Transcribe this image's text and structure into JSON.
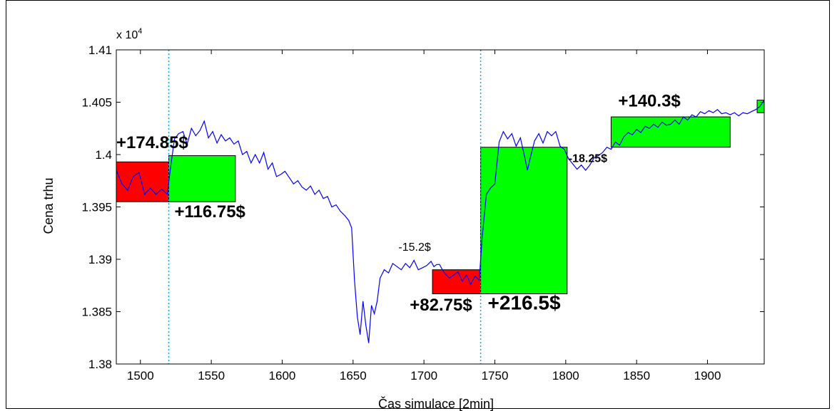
{
  "chart_data": {
    "type": "line",
    "xlabel": "Čas simulace [2min]",
    "ylabel": "Cena trhu",
    "exponent_label": "x 10",
    "exponent_power": "4",
    "xlim": [
      1483,
      1940
    ],
    "ylim": [
      1.38,
      1.41
    ],
    "x_ticks": [
      1500,
      1550,
      1600,
      1650,
      1700,
      1750,
      1800,
      1850,
      1900
    ],
    "x_tick_labels": [
      "1500",
      "1550",
      "1600",
      "1650",
      "1700",
      "1750",
      "1800",
      "1850",
      "1900"
    ],
    "y_ticks": [
      1.38,
      1.385,
      1.39,
      1.395,
      1.4,
      1.405,
      1.41
    ],
    "y_tick_labels": [
      "1.38",
      "1.385",
      "1.39",
      "1.395",
      "1.4",
      "1.405",
      "1.41"
    ],
    "grid": false,
    "line_color": "#0000ff",
    "vlines": [
      1520,
      1740
    ],
    "vline_color": "#00aaee",
    "series": [
      {
        "x": [
          1483,
          1487,
          1491,
          1495,
          1499,
          1503,
          1507,
          1511,
          1515,
          1519,
          1521,
          1524,
          1527,
          1530,
          1533,
          1536,
          1539,
          1542,
          1545,
          1548,
          1551,
          1554,
          1557,
          1560,
          1563,
          1566,
          1569,
          1572,
          1575,
          1578,
          1581,
          1584,
          1587,
          1590,
          1593,
          1596,
          1599,
          1602,
          1605,
          1608,
          1611,
          1614,
          1617,
          1620,
          1623,
          1626,
          1629,
          1632,
          1635,
          1638,
          1641,
          1644,
          1647,
          1649,
          1651,
          1653,
          1655,
          1657,
          1659,
          1661,
          1663,
          1665,
          1667,
          1669,
          1672,
          1675,
          1678,
          1681,
          1684,
          1687,
          1690,
          1693,
          1696,
          1699,
          1702,
          1705,
          1707,
          1709,
          1711,
          1713,
          1715,
          1718,
          1721,
          1724,
          1727,
          1730,
          1733,
          1736,
          1739,
          1741,
          1744,
          1747,
          1750,
          1753,
          1756,
          1759,
          1762,
          1765,
          1768,
          1771,
          1773,
          1775,
          1778,
          1781,
          1784,
          1787,
          1790,
          1793,
          1796,
          1799,
          1802,
          1805,
          1808,
          1811,
          1814,
          1817,
          1820,
          1823,
          1826,
          1829,
          1832,
          1835,
          1838,
          1841,
          1844,
          1847,
          1850,
          1853,
          1856,
          1859,
          1862,
          1865,
          1868,
          1871,
          1874,
          1877,
          1880,
          1883,
          1886,
          1889,
          1892,
          1895,
          1898,
          1901,
          1904,
          1907,
          1910,
          1913,
          1916,
          1919,
          1922,
          1925,
          1928,
          1931,
          1934,
          1937,
          1940
        ],
        "y": [
          1.3985,
          1.3972,
          1.3966,
          1.3979,
          1.3983,
          1.3962,
          1.3968,
          1.3962,
          1.3967,
          1.3962,
          1.3985,
          1.4015,
          1.402,
          1.4022,
          1.401,
          1.4025,
          1.4018,
          1.4023,
          1.4032,
          1.4016,
          1.4022,
          1.4011,
          1.4019,
          1.4013,
          1.4016,
          1.401,
          1.4013,
          1.4,
          1.4003,
          1.3992,
          1.4,
          1.3992,
          1.4002,
          1.3986,
          1.3992,
          1.3979,
          1.3981,
          1.3984,
          1.3978,
          1.3972,
          1.3975,
          1.3969,
          1.3966,
          1.397,
          1.3962,
          1.3966,
          1.3958,
          1.396,
          1.395,
          1.3952,
          1.3946,
          1.3942,
          1.3937,
          1.393,
          1.388,
          1.3845,
          1.3828,
          1.386,
          1.3837,
          1.382,
          1.3856,
          1.3848,
          1.386,
          1.3882,
          1.389,
          1.3887,
          1.3896,
          1.3893,
          1.389,
          1.3896,
          1.3892,
          1.3899,
          1.389,
          1.3892,
          1.3894,
          1.3898,
          1.3893,
          1.3895,
          1.3895,
          1.389,
          1.3886,
          1.3882,
          1.3885,
          1.3888,
          1.3879,
          1.3885,
          1.3876,
          1.3884,
          1.388,
          1.392,
          1.3962,
          1.3968,
          1.3972,
          1.4012,
          1.4022,
          1.4015,
          1.402,
          1.4008,
          1.4016,
          1.3998,
          1.3985,
          1.3997,
          1.4013,
          1.402,
          1.4011,
          1.4022,
          1.4018,
          1.4022,
          1.4008,
          1.4005,
          1.3996,
          1.3991,
          1.3986,
          1.399,
          1.3985,
          1.399,
          1.3997,
          1.3999,
          1.4002,
          1.4007,
          1.4005,
          1.4012,
          1.4009,
          1.4017,
          1.4021,
          1.4019,
          1.4024,
          1.4021,
          1.4027,
          1.4025,
          1.4029,
          1.4026,
          1.4031,
          1.4028,
          1.4029,
          1.4033,
          1.4029,
          1.4036,
          1.4033,
          1.4038,
          1.4036,
          1.4041,
          1.4039,
          1.4042,
          1.404,
          1.4043,
          1.4039,
          1.404,
          1.4038,
          1.404,
          1.4037,
          1.404,
          1.4039,
          1.4041,
          1.4043,
          1.4046,
          1.4052
        ]
      }
    ],
    "rectangles": [
      {
        "x0": 1483,
        "x1": 1520,
        "y0": 1.3955,
        "y1": 1.3993,
        "fill": "#ff0000"
      },
      {
        "x0": 1520,
        "x1": 1567,
        "y0": 1.3955,
        "y1": 1.3999,
        "fill": "#00ff00"
      },
      {
        "x0": 1706,
        "x1": 1740,
        "y0": 1.3867,
        "y1": 1.389,
        "fill": "#ff0000"
      },
      {
        "x0": 1740,
        "x1": 1801,
        "y0": 1.3867,
        "y1": 1.4007,
        "fill": "#00ff00"
      },
      {
        "x0": 1832,
        "x1": 1916,
        "y0": 1.4007,
        "y1": 1.4036,
        "fill": "#00ff00"
      },
      {
        "x0": 1935,
        "x1": 1940,
        "y0": 1.404,
        "y1": 1.4052,
        "fill": "#00ff00"
      }
    ],
    "annotations": [
      {
        "text": "+174.85$",
        "x": 1483,
        "y": 1.4006,
        "size": "large"
      },
      {
        "text": "+116.75$",
        "x": 1524,
        "y": 1.394,
        "size": "large"
      },
      {
        "text": "-15.2$",
        "x": 1682,
        "y": 1.3908,
        "size": "small"
      },
      {
        "text": "+82.75$",
        "x": 1690,
        "y": 1.3851,
        "size": "large"
      },
      {
        "text": "+216.5$",
        "x": 1745,
        "y": 1.3852,
        "size": "xlarge"
      },
      {
        "text": "+140.3$",
        "x": 1837,
        "y": 1.4046,
        "size": "large"
      },
      {
        "text": "-18.25$",
        "x": 1802,
        "y": 1.3993,
        "size": "small"
      }
    ]
  }
}
